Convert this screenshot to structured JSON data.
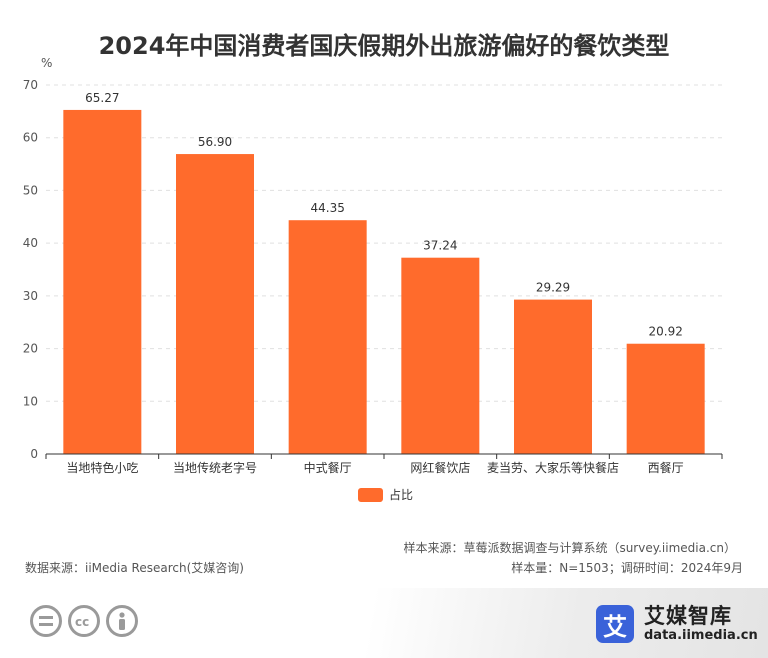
{
  "chart_data": {
    "type": "bar",
    "title": "2024年中国消费者国庆假期外出旅游偏好的餐饮类型",
    "ylabel": "%",
    "xlabel": "",
    "ylim": [
      0,
      70
    ],
    "yticks": [
      0,
      10,
      20,
      30,
      40,
      50,
      60,
      70
    ],
    "grid": true,
    "legend_position": "bottom",
    "categories": [
      "当地特色小吃",
      "当地传统老字号",
      "中式餐厅",
      "网红餐饮店",
      "麦当劳、大家乐等快餐店",
      "西餐厅"
    ],
    "series": [
      {
        "name": "占比",
        "color": "#ff6b2c",
        "values": [
          65.27,
          56.9,
          44.35,
          37.24,
          29.29,
          20.92
        ],
        "value_labels": [
          "65.27",
          "56.90",
          "44.35",
          "37.24",
          "29.29",
          "20.92"
        ]
      }
    ]
  },
  "footer": {
    "source_note": "样本来源：草莓派数据调查与计算系统（survey.iimedia.cn）",
    "data_source": "数据来源：iiMedia Research(艾媒咨询)",
    "sample_note": "样本量：N=1503；调研时间：2024年9月"
  },
  "branding": {
    "logo_mark": "艾",
    "logo_name": "艾媒智库",
    "logo_url": "data.iimedia.cn",
    "logo_color": "#3a62d9",
    "license_icons": [
      "equals-icon",
      "cc-icon",
      "person-icon"
    ]
  }
}
